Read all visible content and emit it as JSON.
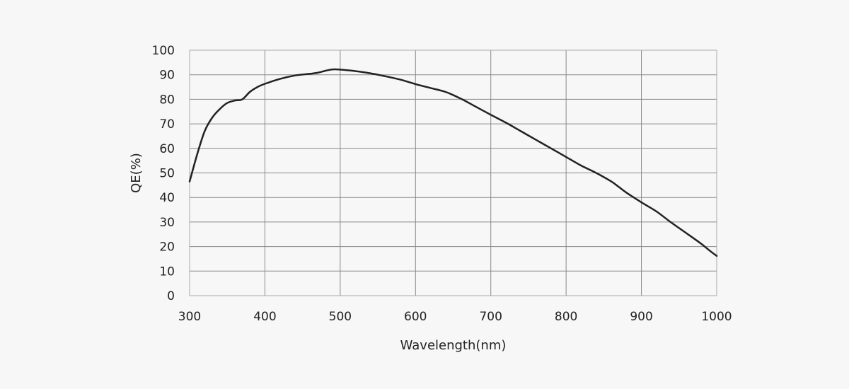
{
  "chart_data": {
    "type": "line",
    "title": "",
    "xlabel": "Wavelength(nm)",
    "ylabel": "QE(%)",
    "xlim": [
      300,
      1000
    ],
    "ylim": [
      0,
      100
    ],
    "xticks": [
      300,
      400,
      500,
      600,
      700,
      800,
      900,
      1000
    ],
    "yticks": [
      0,
      10,
      20,
      30,
      40,
      50,
      60,
      70,
      80,
      90,
      100
    ],
    "grid": true,
    "legend": "none",
    "colors": {
      "line": "#222222",
      "grid": "#888888",
      "frame": "#aaaaaa",
      "background": "#f7f7f7"
    },
    "series": [
      {
        "x": [
          300,
          310,
          320,
          330,
          340,
          350,
          360,
          370,
          380,
          390,
          400,
          420,
          440,
          460,
          470,
          480,
          490,
          500,
          520,
          540,
          560,
          580,
          600,
          620,
          640,
          660,
          680,
          700,
          720,
          740,
          760,
          780,
          800,
          820,
          840,
          860,
          870,
          880,
          900,
          920,
          940,
          960,
          980,
          990,
          1000
        ],
        "y": [
          46.5,
          57.5,
          67.0,
          72.5,
          76.0,
          78.5,
          79.5,
          80.0,
          83.0,
          85.0,
          86.3,
          88.3,
          89.7,
          90.4,
          90.8,
          91.6,
          92.2,
          92.1,
          91.5,
          90.6,
          89.4,
          88.0,
          86.2,
          84.6,
          83.0,
          80.3,
          77.0,
          73.7,
          70.5,
          67.0,
          63.5,
          60.0,
          56.5,
          53.0,
          50.0,
          46.5,
          44.3,
          42.0,
          38.0,
          34.3,
          29.7,
          25.4,
          21.0,
          18.5,
          16.2
        ]
      }
    ]
  }
}
